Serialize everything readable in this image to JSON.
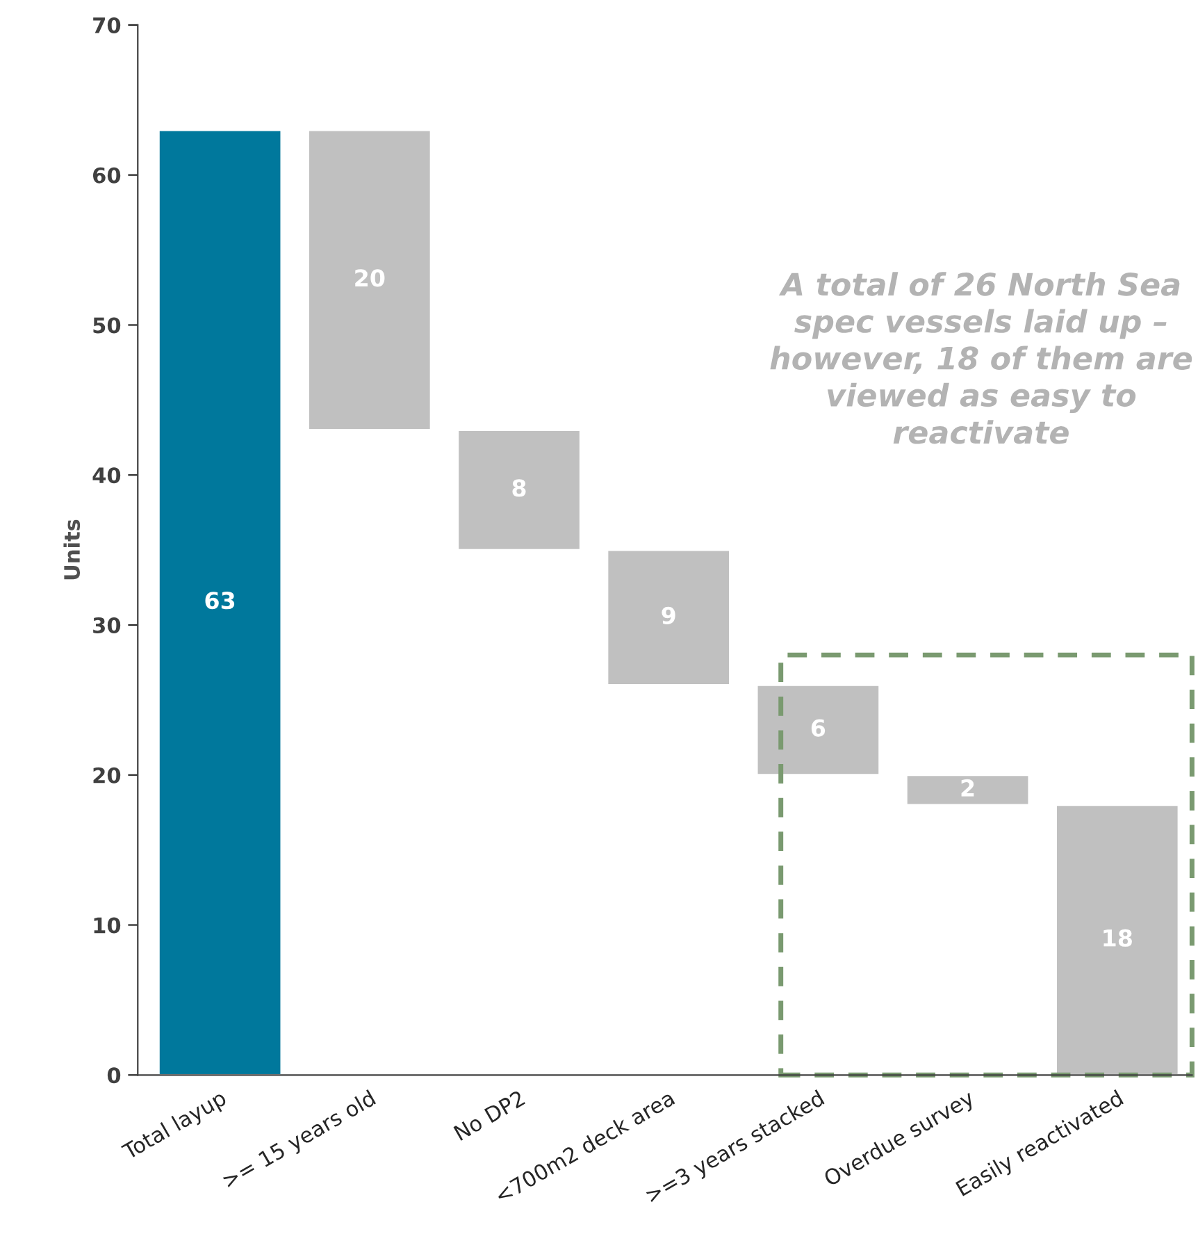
{
  "chart_data": {
    "type": "bar",
    "ylabel": "Units",
    "categories": [
      "Total layup",
      ">= 15 years old",
      "No DP2",
      "<700m2 deck area",
      ">=3 years stacked",
      "Overdue survey",
      "Easily reactivated"
    ],
    "values": [
      63,
      20,
      8,
      9,
      6,
      2,
      18
    ],
    "base": [
      0,
      43,
      35,
      26,
      20,
      18,
      0
    ],
    "colors": [
      "#00789c",
      "#c0c0c0",
      "#c0c0c0",
      "#c0c0c0",
      "#c0c0c0",
      "#c0c0c0",
      "#c0c0c0"
    ],
    "ylim": [
      0,
      70
    ],
    "yticks": [
      0,
      10,
      20,
      30,
      40,
      50,
      60,
      70
    ],
    "data_labels": true,
    "grid": false,
    "legend": false,
    "annotations": [
      "A total of 26 North Sea spec vessels laid up – however, 18 of them are viewed as easy to reactivate"
    ]
  }
}
